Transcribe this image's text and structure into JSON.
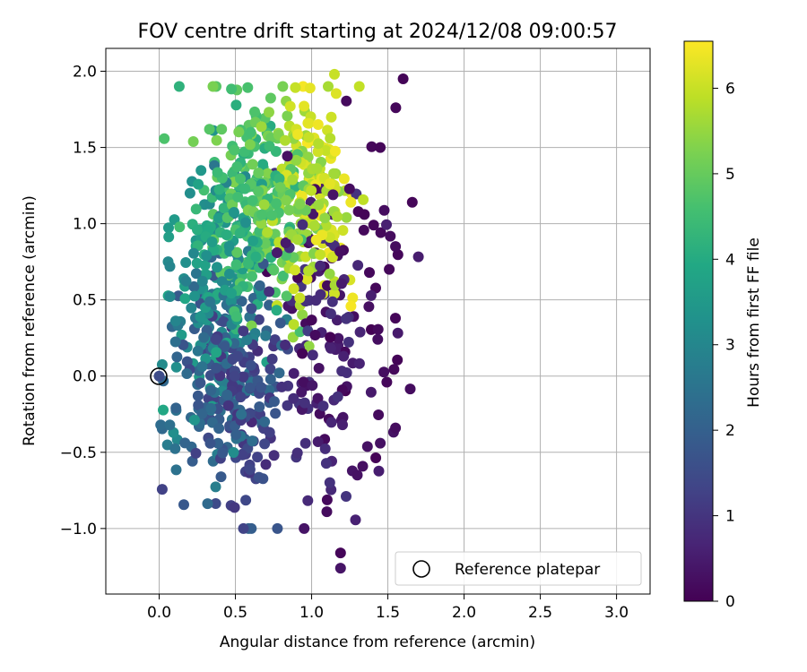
{
  "chart_data": {
    "type": "scatter",
    "title": "FOV centre drift starting at 2024/12/08 09:00:57",
    "xlabel": "Angular distance from reference (arcmin)",
    "ylabel": "Rotation from reference (arcmin)",
    "xlim": [
      -0.35,
      3.22
    ],
    "ylim": [
      -1.43,
      2.15
    ],
    "xticks": [
      0.0,
      0.5,
      1.0,
      1.5,
      2.0,
      2.5,
      3.0
    ],
    "xtick_labels": [
      "0.0",
      "0.5",
      "1.0",
      "1.5",
      "2.0",
      "2.5",
      "3.0"
    ],
    "yticks": [
      -1.0,
      -0.5,
      0.0,
      0.5,
      1.0,
      1.5,
      2.0
    ],
    "ytick_labels": [
      "−1.0",
      "−0.5",
      "0.0",
      "0.5",
      "1.0",
      "1.5",
      "2.0"
    ],
    "grid": true,
    "legend": {
      "placement": "lower-right",
      "entries": [
        "Reference platepar"
      ]
    },
    "reference_point": {
      "x": 0.0,
      "y": 0.0
    },
    "colorbar": {
      "label": "Hours from first FF file",
      "colormap": "viridis",
      "range": [
        0,
        6.55
      ],
      "ticks": [
        0,
        1,
        2,
        3,
        4,
        5,
        6
      ],
      "tick_labels": [
        "0",
        "1",
        "2",
        "3",
        "4",
        "5",
        "6"
      ]
    },
    "point_count": 1000,
    "series": [
      {
        "points": [
          [
            1.6,
            1.95,
            0.05
          ],
          [
            1.15,
            1.98,
            6.0
          ],
          [
            0.99,
            1.89,
            6.3
          ],
          [
            1.19,
            -1.16,
            0.1
          ],
          [
            1.19,
            -1.26,
            0.35
          ],
          [
            1.1,
            -0.89,
            0.2
          ],
          [
            0.0,
            0.0,
            1.5
          ],
          [
            0.01,
            -0.32,
            2.3
          ],
          [
            0.07,
            -0.32,
            2.4
          ],
          [
            1.45,
            -0.44,
            0.3
          ],
          [
            1.55,
            -0.34,
            0.2
          ],
          [
            1.3,
            -0.65,
            0.3
          ],
          [
            1.45,
            1.5,
            0.1
          ],
          [
            1.66,
            1.14,
            0.1
          ],
          [
            1.55,
            0.85,
            0.2
          ],
          [
            0.33,
            1.62,
            4.8
          ],
          [
            0.41,
            1.62,
            4.9
          ],
          [
            0.86,
            1.77,
            6.1
          ]
        ]
      }
    ]
  }
}
